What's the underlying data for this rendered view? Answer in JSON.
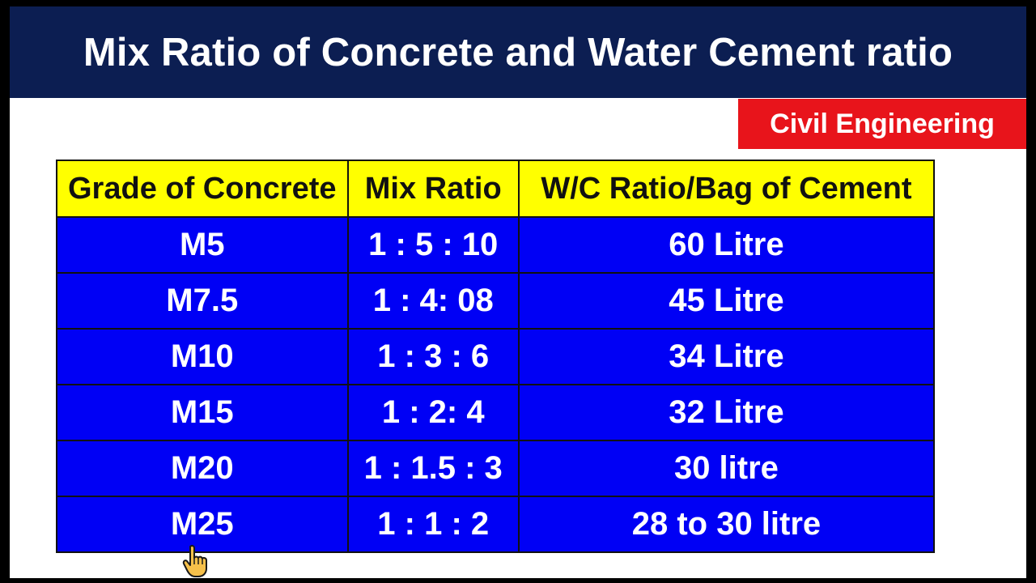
{
  "title": "Mix Ratio of Concrete and Water Cement ratio",
  "tag": "Civil Engineering",
  "table": {
    "headers": [
      "Grade of Concrete",
      "Mix Ratio",
      "W/C Ratio/Bag of Cement"
    ],
    "rows": [
      [
        "M5",
        "1 : 5 : 10",
        "60 Litre"
      ],
      [
        "M7.5",
        "1 : 4: 08",
        "45 Litre"
      ],
      [
        "M10",
        "1 : 3 : 6",
        "34 Litre"
      ],
      [
        "M15",
        "1 : 2: 4",
        "32 Litre"
      ],
      [
        "M20",
        "1 : 1.5 : 3",
        "30 litre"
      ],
      [
        "M25",
        "1 : 1 : 2",
        "28 to 30 litre"
      ]
    ]
  },
  "colors": {
    "title_bar": "#0c1e52",
    "tag": "#e8141b",
    "header_row": "#ffff00",
    "body_rows": "#0000f5"
  },
  "icons": {
    "cursor": "hand-pointer-icon"
  }
}
